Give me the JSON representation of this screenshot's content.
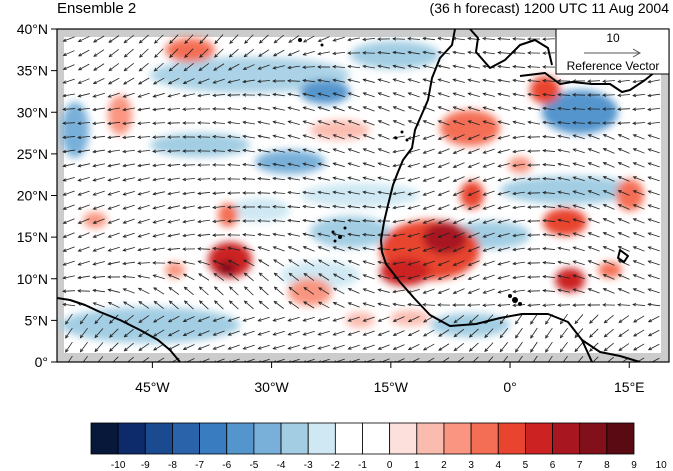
{
  "header": {
    "left_title": "Ensemble 2",
    "right_title": "(36 h forecast) 1200 UTC 11 Aug 2004"
  },
  "map": {
    "lon_range": [
      -57,
      20
    ],
    "lat_range": [
      0,
      40
    ],
    "lat_ticks": [
      {
        "value": 40,
        "label": "40°N"
      },
      {
        "value": 35,
        "label": "35°N"
      },
      {
        "value": 30,
        "label": "30°N"
      },
      {
        "value": 25,
        "label": "25°N"
      },
      {
        "value": 20,
        "label": "20°N"
      },
      {
        "value": 15,
        "label": "15°N"
      },
      {
        "value": 10,
        "label": "10°N"
      },
      {
        "value": 5,
        "label": "5°N"
      },
      {
        "value": 0,
        "label": "0°"
      }
    ],
    "lon_ticks": [
      {
        "value": -45,
        "label": "45°W"
      },
      {
        "value": -30,
        "label": "30°W"
      },
      {
        "value": -15,
        "label": "15°W"
      },
      {
        "value": 0,
        "label": "0°"
      },
      {
        "value": 15,
        "label": "15°E"
      }
    ],
    "reference_vector": {
      "value": "10",
      "label": "Reference Vector"
    }
  },
  "colorbar": {
    "colors": [
      "#08183a",
      "#0d2b6b",
      "#1a4a8f",
      "#2a63aa",
      "#3a7cc0",
      "#5595cd",
      "#78b0d9",
      "#a2cde3",
      "#cfe8f3",
      "#ffffff",
      "#ffffff",
      "#fde0dc",
      "#fbbcb0",
      "#f99580",
      "#f46e55",
      "#e8442f",
      "#cc2222",
      "#a81620",
      "#82101a",
      "#5a0a12"
    ],
    "labels": [
      "-10",
      "-9",
      "-8",
      "-7",
      "-6",
      "-5",
      "-4",
      "-3",
      "-2",
      "-1",
      "0",
      "1",
      "2",
      "3",
      "4",
      "5",
      "6",
      "7",
      "8",
      "9",
      "10"
    ]
  },
  "colors": {
    "land_grey": "#cccccc",
    "coast": "#000000"
  }
}
